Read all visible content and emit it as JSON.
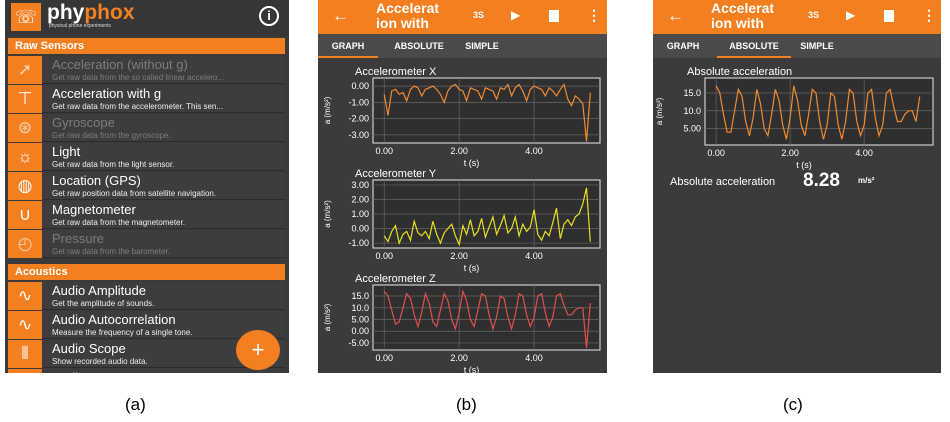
{
  "panel_a": {
    "logo_name": "phy",
    "logo_accent": "phox",
    "logo_sub": "physical phone experiments",
    "info_icon": "info-icon",
    "categories": [
      {
        "label": "Raw Sensors",
        "items": [
          {
            "title": "Acceleration (without g)",
            "desc": "Get raw data from the so called linear accelero...",
            "icon": "acceleration-icon",
            "disabled": true
          },
          {
            "title": "Acceleration with g",
            "desc": "Get raw data from the accelerometer. This sen...",
            "icon": "accelerometer-icon",
            "disabled": false
          },
          {
            "title": "Gyroscope",
            "desc": "Get raw data from the gyroscope.",
            "icon": "gyroscope-icon",
            "disabled": true
          },
          {
            "title": "Light",
            "desc": "Get raw data from the light sensor.",
            "icon": "lightbulb-icon",
            "disabled": false
          },
          {
            "title": "Location (GPS)",
            "desc": "Get raw position data from satellite navigation.",
            "icon": "globe-icon",
            "disabled": false
          },
          {
            "title": "Magnetometer",
            "desc": "Get raw data from the magnetometer.",
            "icon": "magnet-icon",
            "disabled": false
          },
          {
            "title": "Pressure",
            "desc": "Get raw data from the barometer.",
            "icon": "barometer-icon",
            "disabled": true
          }
        ]
      },
      {
        "label": "Acoustics",
        "items": [
          {
            "title": "Audio Amplitude",
            "desc": "Get the amplitude of sounds.",
            "icon": "wave-icon",
            "disabled": false
          },
          {
            "title": "Audio Autocorrelation",
            "desc": "Measure the frequency of a single tone.",
            "icon": "wave-icon",
            "disabled": false
          },
          {
            "title": "Audio Scope",
            "desc": "Show recorded audio data.",
            "icon": "audio-scope-icon",
            "disabled": false
          },
          {
            "title": "Audio Spectrum",
            "desc": "",
            "icon": "spectrum-icon",
            "disabled": false
          }
        ]
      }
    ],
    "fab": "+"
  },
  "experiment": {
    "title": "Accelerat ion with",
    "timer": "3S",
    "tabs": [
      "GRAPH",
      "ABSOLUTE",
      "SIMPLE"
    ]
  },
  "panel_b": {
    "active_tab": 0
  },
  "panel_c": {
    "active_tab": 1,
    "readout_label": "Absolute acceleration",
    "readout_value": "8.28",
    "readout_unit": "m/s²"
  },
  "captions": [
    "(a)",
    "(b)",
    "(c)"
  ],
  "colors": {
    "accent": "#f47f20",
    "x": "#f08a30",
    "y": "#e8e020",
    "z": "#e05050",
    "abs": "#f08a30"
  },
  "chart_data": [
    {
      "type": "line",
      "title": "Accelerometer X",
      "xlabel": "t (s)",
      "ylabel": "a (m/s²)",
      "xlim": [
        -0.3,
        5.76
      ],
      "ylim": [
        -3.5,
        0.5
      ],
      "xticks": [
        "0.00",
        "2.00",
        "4.00"
      ],
      "xtick_values": [
        0,
        2,
        4
      ],
      "yticks": [
        "0.00",
        "-1.00",
        "-2.00",
        "-3.00"
      ],
      "ytick_values": [
        0,
        -1,
        -2,
        -3
      ],
      "grid": true,
      "color_key": "x",
      "x0": 0,
      "dx": 0.1,
      "values": [
        -0.5,
        -1.8,
        -0.3,
        -0.2,
        -0.5,
        -0.4,
        -0.9,
        -0.2,
        0,
        -0.1,
        -0.6,
        -0.2,
        -0.1,
        0,
        -0.2,
        -0.5,
        -1,
        -0.3,
        0,
        0.1,
        -0.2,
        -0.3,
        -0.9,
        -0.1,
        -0.2,
        -0.3,
        -0.8,
        -0.1,
        -0.2,
        -0.3,
        -0.8,
        -0.1,
        -0.2,
        0.1,
        -0.6,
        -0.1,
        0.1,
        -0.3,
        -0.9,
        -0.2,
        0,
        -0.1,
        -0.2,
        -0.6,
        -0.1,
        -0.3,
        -0.6,
        -0.2,
        0.1,
        -0.8,
        -1.2,
        -0.6,
        -0.8,
        -1.1,
        -3.4,
        -0.4
      ]
    },
    {
      "type": "line",
      "title": "Accelerometer Y",
      "xlabel": "t (s)",
      "ylabel": "a (m/s²)",
      "xlim": [
        -0.3,
        5.76
      ],
      "ylim": [
        -1.34,
        3.34
      ],
      "xticks": [
        "0.00",
        "2.00",
        "4.00"
      ],
      "xtick_values": [
        0,
        2,
        4
      ],
      "yticks": [
        "3.00",
        "2.00",
        "1.00",
        "0.00",
        "-1.00"
      ],
      "ytick_values": [
        3,
        2,
        1,
        0,
        -1
      ],
      "grid": true,
      "color_key": "y",
      "x0": 0,
      "dx": 0.1,
      "values": [
        -0.5,
        -0.9,
        -0.2,
        0.2,
        -1,
        -0.4,
        -0.2,
        -0.8,
        0.5,
        -0.3,
        -0.5,
        -0.2,
        -0.7,
        0.5,
        -0.4,
        -1,
        -0.3,
        0,
        0.3,
        -0.5,
        -1.1,
        0.2,
        -0.4,
        0.6,
        -0.5,
        -0.2,
        0.7,
        -0.6,
        0.1,
        0.8,
        -0.4,
        0.2,
        0.9,
        -0.3,
        0,
        0.8,
        -0.5,
        0.3,
        -0.2,
        0.1,
        1.3,
        -0.4,
        -0.8,
        -0.2,
        -0.5,
        0.4,
        1.4,
        -0.7,
        0.3,
        0.6,
        0.2,
        0.8,
        1.0,
        1.7,
        2.8,
        -0.9
      ]
    },
    {
      "type": "line",
      "title": "Accelerometer Z",
      "xlabel": "t (s)",
      "ylabel": "a (m/s²)",
      "xlim": [
        -0.3,
        5.76
      ],
      "ylim": [
        -8,
        19.7
      ],
      "xticks": [
        "0.00",
        "2.00",
        "4.00"
      ],
      "xtick_values": [
        0,
        2,
        4
      ],
      "yticks": [
        "15.0",
        "10.0",
        "5.00",
        "0.00",
        "-5.00"
      ],
      "ytick_values": [
        15,
        10,
        5,
        0,
        -5
      ],
      "grid": true,
      "color_key": "z",
      "x0": 0,
      "dx": 0.1,
      "values": [
        17,
        15,
        9,
        3,
        4,
        10,
        16,
        14,
        7,
        2,
        8,
        16,
        12,
        4,
        2,
        9,
        16,
        13,
        5,
        1,
        8,
        17,
        13,
        5,
        2,
        9,
        16,
        15,
        7,
        1,
        6,
        15,
        14,
        6,
        1,
        7,
        16,
        15,
        7,
        2,
        6,
        15,
        16,
        8,
        2,
        6,
        15,
        16,
        11,
        7,
        7,
        9,
        10,
        10,
        -7,
        12
      ]
    },
    {
      "type": "line",
      "title": "Absolute acceleration",
      "xlabel": "t (s)",
      "ylabel": "a (m/s²)",
      "xlim": [
        -0.3,
        5.86
      ],
      "ylim": [
        0.4,
        19.2
      ],
      "xticks": [
        "0.00",
        "2.00",
        "4.00"
      ],
      "xtick_values": [
        0,
        2,
        4
      ],
      "yticks": [
        "15.0",
        "10.0",
        "5.00"
      ],
      "ytick_values": [
        15,
        10,
        5
      ],
      "grid": true,
      "color_key": "abs",
      "x0": 0,
      "dx": 0.1,
      "values": [
        17,
        15,
        9,
        4,
        4,
        10,
        16,
        14,
        7,
        3,
        8,
        16,
        12,
        5,
        3,
        9,
        16,
        13,
        6,
        2,
        8,
        17,
        13,
        6,
        3,
        9,
        16,
        15,
        7,
        2,
        6,
        15,
        14,
        6,
        2,
        7,
        16,
        15,
        7,
        3,
        6,
        15,
        16,
        8,
        3,
        6,
        15,
        16,
        11,
        7,
        7,
        9,
        10,
        10,
        7,
        14
      ]
    }
  ]
}
